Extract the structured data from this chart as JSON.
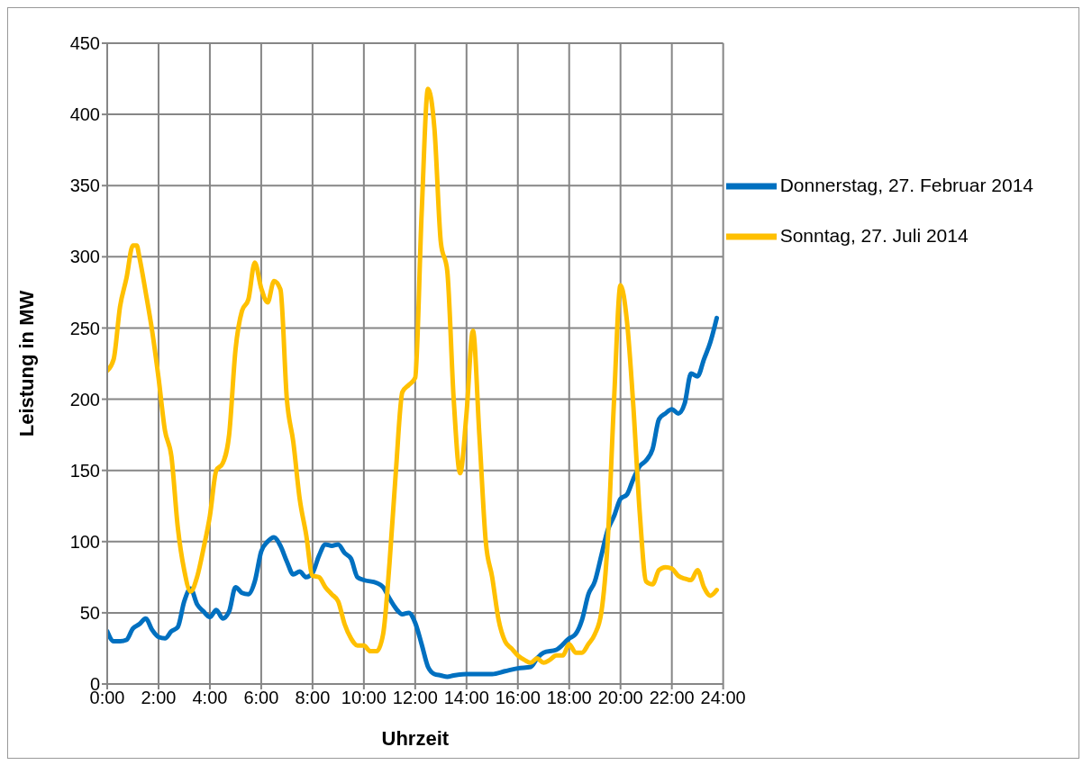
{
  "chart_data": {
    "type": "line",
    "xlabel": "Uhrzeit",
    "ylabel": "Leistung in MW",
    "xlim": [
      0,
      24
    ],
    "xticks": [
      {
        "value": 0,
        "label": "0:00"
      },
      {
        "value": 2,
        "label": "2:00"
      },
      {
        "value": 4,
        "label": "4:00"
      },
      {
        "value": 6,
        "label": "6:00"
      },
      {
        "value": 8,
        "label": "8:00"
      },
      {
        "value": 10,
        "label": "10:00"
      },
      {
        "value": 12,
        "label": "12:00"
      },
      {
        "value": 14,
        "label": "14:00"
      },
      {
        "value": 16,
        "label": "16:00"
      },
      {
        "value": 18,
        "label": "18:00"
      },
      {
        "value": 20,
        "label": "20:00"
      },
      {
        "value": 22,
        "label": "22:00"
      },
      {
        "value": 24,
        "label": "24:00"
      }
    ],
    "ylim": [
      0,
      450
    ],
    "yticks": [
      0,
      50,
      100,
      150,
      200,
      250,
      300,
      350,
      400,
      450
    ],
    "grid": true,
    "legend": "top right",
    "marker": "none",
    "line_style": "solid",
    "series": [
      {
        "name": "Donnerstag, 27. Februar 2014",
        "color": "#0070c0",
        "x": [
          0,
          0.25,
          0.5,
          0.75,
          1,
          1.25,
          1.5,
          1.75,
          2,
          2.25,
          2.5,
          2.75,
          3,
          3.25,
          3.5,
          3.75,
          4,
          4.25,
          4.5,
          4.75,
          5,
          5.25,
          5.5,
          5.75,
          6,
          6.25,
          6.5,
          6.75,
          7,
          7.25,
          7.5,
          7.75,
          8,
          8.25,
          8.5,
          8.75,
          9,
          9.25,
          9.5,
          9.75,
          10,
          10.5,
          10.75,
          11,
          11.25,
          11.5,
          11.75,
          12,
          12.25,
          12.5,
          12.75,
          13,
          13.25,
          13.5,
          14,
          15,
          15.5,
          16,
          16.5,
          16.75,
          17,
          17.5,
          18,
          18.25,
          18.5,
          18.75,
          19,
          19.25,
          19.5,
          19.75,
          20,
          20.25,
          20.5,
          20.75,
          21,
          21.25,
          21.5,
          21.75,
          22,
          22.25,
          22.5,
          22.75,
          23,
          23.25,
          23.5,
          23.75
        ],
        "values": [
          37,
          30,
          30,
          31,
          39,
          42,
          46,
          38,
          33,
          32,
          37,
          40,
          58,
          67,
          56,
          51,
          47,
          52,
          46,
          51,
          68,
          64,
          63,
          72,
          93,
          100,
          103,
          97,
          86,
          77,
          79,
          75,
          78,
          90,
          98,
          97,
          98,
          92,
          88,
          75,
          73,
          71,
          68,
          60,
          53,
          49,
          50,
          43,
          28,
          12,
          7,
          6,
          5,
          6,
          7,
          7,
          9,
          11,
          12,
          18,
          22,
          24,
          32,
          35,
          45,
          63,
          72,
          90,
          108,
          118,
          130,
          133,
          144,
          153,
          157,
          165,
          186,
          190,
          193,
          190,
          197,
          218,
          216,
          228,
          240,
          257
        ]
      },
      {
        "name": "Sonntag, 27. Juli 2014",
        "color": "#ffc000",
        "x": [
          0,
          0.25,
          0.5,
          0.75,
          1,
          1.15,
          1.25,
          1.5,
          1.75,
          2,
          2.25,
          2.5,
          2.75,
          3,
          3.25,
          3.5,
          3.75,
          4,
          4.25,
          4.5,
          4.75,
          5,
          5.25,
          5.5,
          5.75,
          6,
          6.25,
          6.5,
          6.75,
          7,
          7.25,
          7.5,
          7.75,
          8,
          8.25,
          8.5,
          8.75,
          9,
          9.25,
          9.5,
          9.75,
          10,
          10.25,
          10.5,
          10.75,
          11,
          11.25,
          11.5,
          11.75,
          12,
          12.25,
          12.5,
          12.75,
          13,
          13.25,
          13.5,
          13.75,
          14,
          14.25,
          14.5,
          14.75,
          15,
          15.25,
          15.5,
          15.75,
          16,
          16.25,
          16.5,
          16.75,
          17,
          17.25,
          17.5,
          17.75,
          18,
          18.25,
          18.5,
          18.75,
          19,
          19.25,
          19.5,
          19.75,
          20,
          20.25,
          20.5,
          20.75,
          21,
          21.25,
          21.5,
          21.75,
          22,
          22.25,
          22.5,
          22.75,
          23,
          23.25,
          23.5,
          23.75
        ],
        "values": [
          220,
          228,
          265,
          285,
          308,
          308,
          300,
          275,
          248,
          215,
          178,
          160,
          110,
          80,
          65,
          75,
          95,
          118,
          150,
          155,
          175,
          235,
          262,
          270,
          296,
          278,
          268,
          283,
          277,
          200,
          170,
          130,
          105,
          76,
          75,
          68,
          63,
          58,
          42,
          32,
          27,
          27,
          23,
          23,
          35,
          85,
          150,
          205,
          210,
          215,
          330,
          418,
          390,
          310,
          290,
          200,
          148,
          190,
          248,
          175,
          100,
          75,
          45,
          30,
          25,
          20,
          17,
          15,
          18,
          15,
          17,
          20,
          20,
          28,
          22,
          22,
          28,
          35,
          50,
          100,
          200,
          280,
          255,
          195,
          120,
          72,
          70,
          80,
          82,
          81,
          76,
          74,
          73,
          80,
          68,
          62,
          66
        ]
      }
    ]
  }
}
